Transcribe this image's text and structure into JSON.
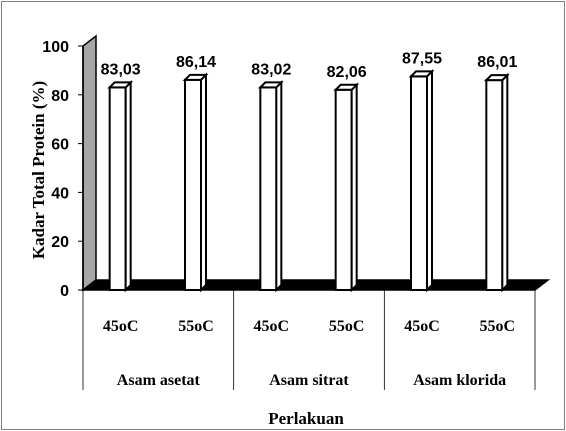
{
  "chart_data": {
    "type": "bar",
    "style": "3d-column",
    "categories": [
      "45oC",
      "55oC",
      "45oC",
      "55oC",
      "45oC",
      "55oC"
    ],
    "groups": [
      {
        "label": "Asam asetat"
      },
      {
        "label": "Asam sitrat"
      },
      {
        "label": "Asam klorida"
      }
    ],
    "values": [
      83.03,
      86.14,
      83.02,
      82.06,
      87.55,
      86.01
    ],
    "value_labels": [
      "83,03",
      "86,14",
      "83,02",
      "82,06",
      "87,55",
      "86,01"
    ],
    "yticks": [
      "0",
      "20",
      "40",
      "60",
      "80",
      "100"
    ],
    "ylim": [
      0,
      100
    ],
    "ylabel": "Kadar Total Protein (%)",
    "xlabel": "Perlakuan",
    "grid": false,
    "legend": "none",
    "colors": {
      "bar_fill": "#ffffff",
      "bar_edge": "#000000",
      "back_wall": "#a6a6a6",
      "floor": "#000000",
      "frame": "#7f7f7f"
    }
  }
}
